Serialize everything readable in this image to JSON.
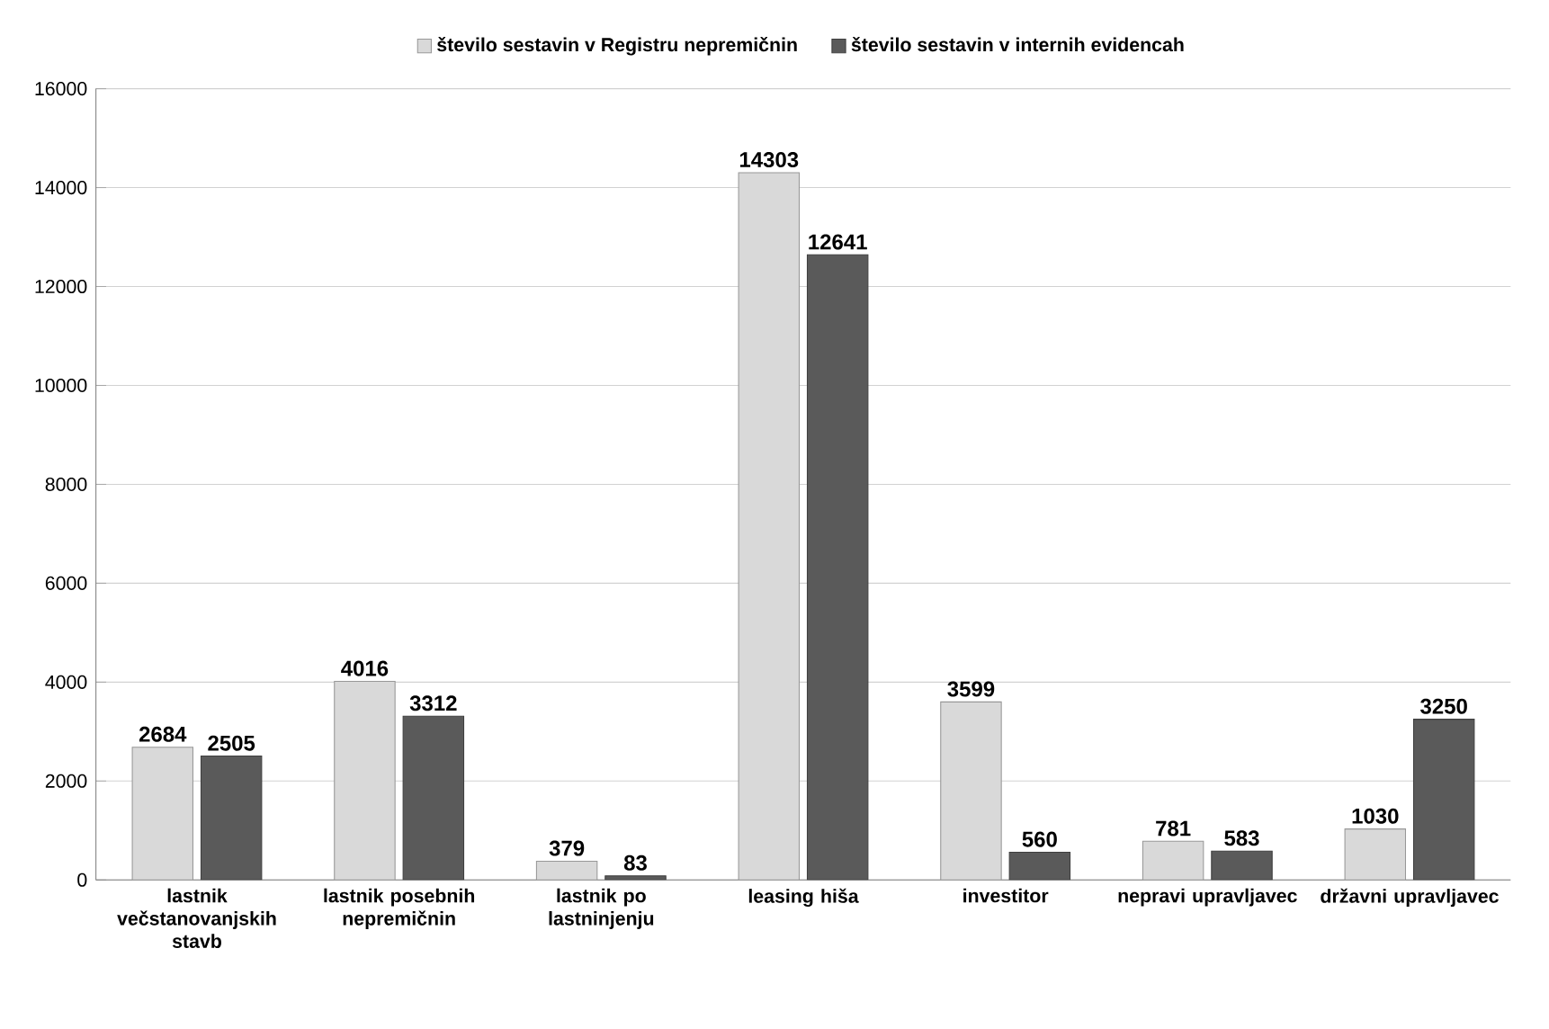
{
  "chart_data": {
    "type": "bar",
    "categories": [
      "lastnik večstanovanjskih stavb",
      "lastnik posebnih nepremičnin",
      "lastnik po lastninjenju",
      "leasing hiša",
      "investitor",
      "nepravi upravljavec",
      "državni upravljavec"
    ],
    "series": [
      {
        "name": "število sestavin v Registru nepremičnin",
        "color": "#d9d9d9",
        "values": [
          2684,
          4016,
          379,
          14303,
          3599,
          781,
          1030
        ]
      },
      {
        "name": "število sestavin v internih evidencah",
        "color": "#5a5a5a",
        "values": [
          2505,
          3312,
          83,
          12641,
          560,
          583,
          3250
        ]
      }
    ],
    "ylim": [
      0,
      16000
    ],
    "yticks": [
      0,
      2000,
      4000,
      6000,
      8000,
      10000,
      12000,
      14000,
      16000
    ],
    "grid": "y",
    "legend": "top",
    "data_labels": true
  }
}
